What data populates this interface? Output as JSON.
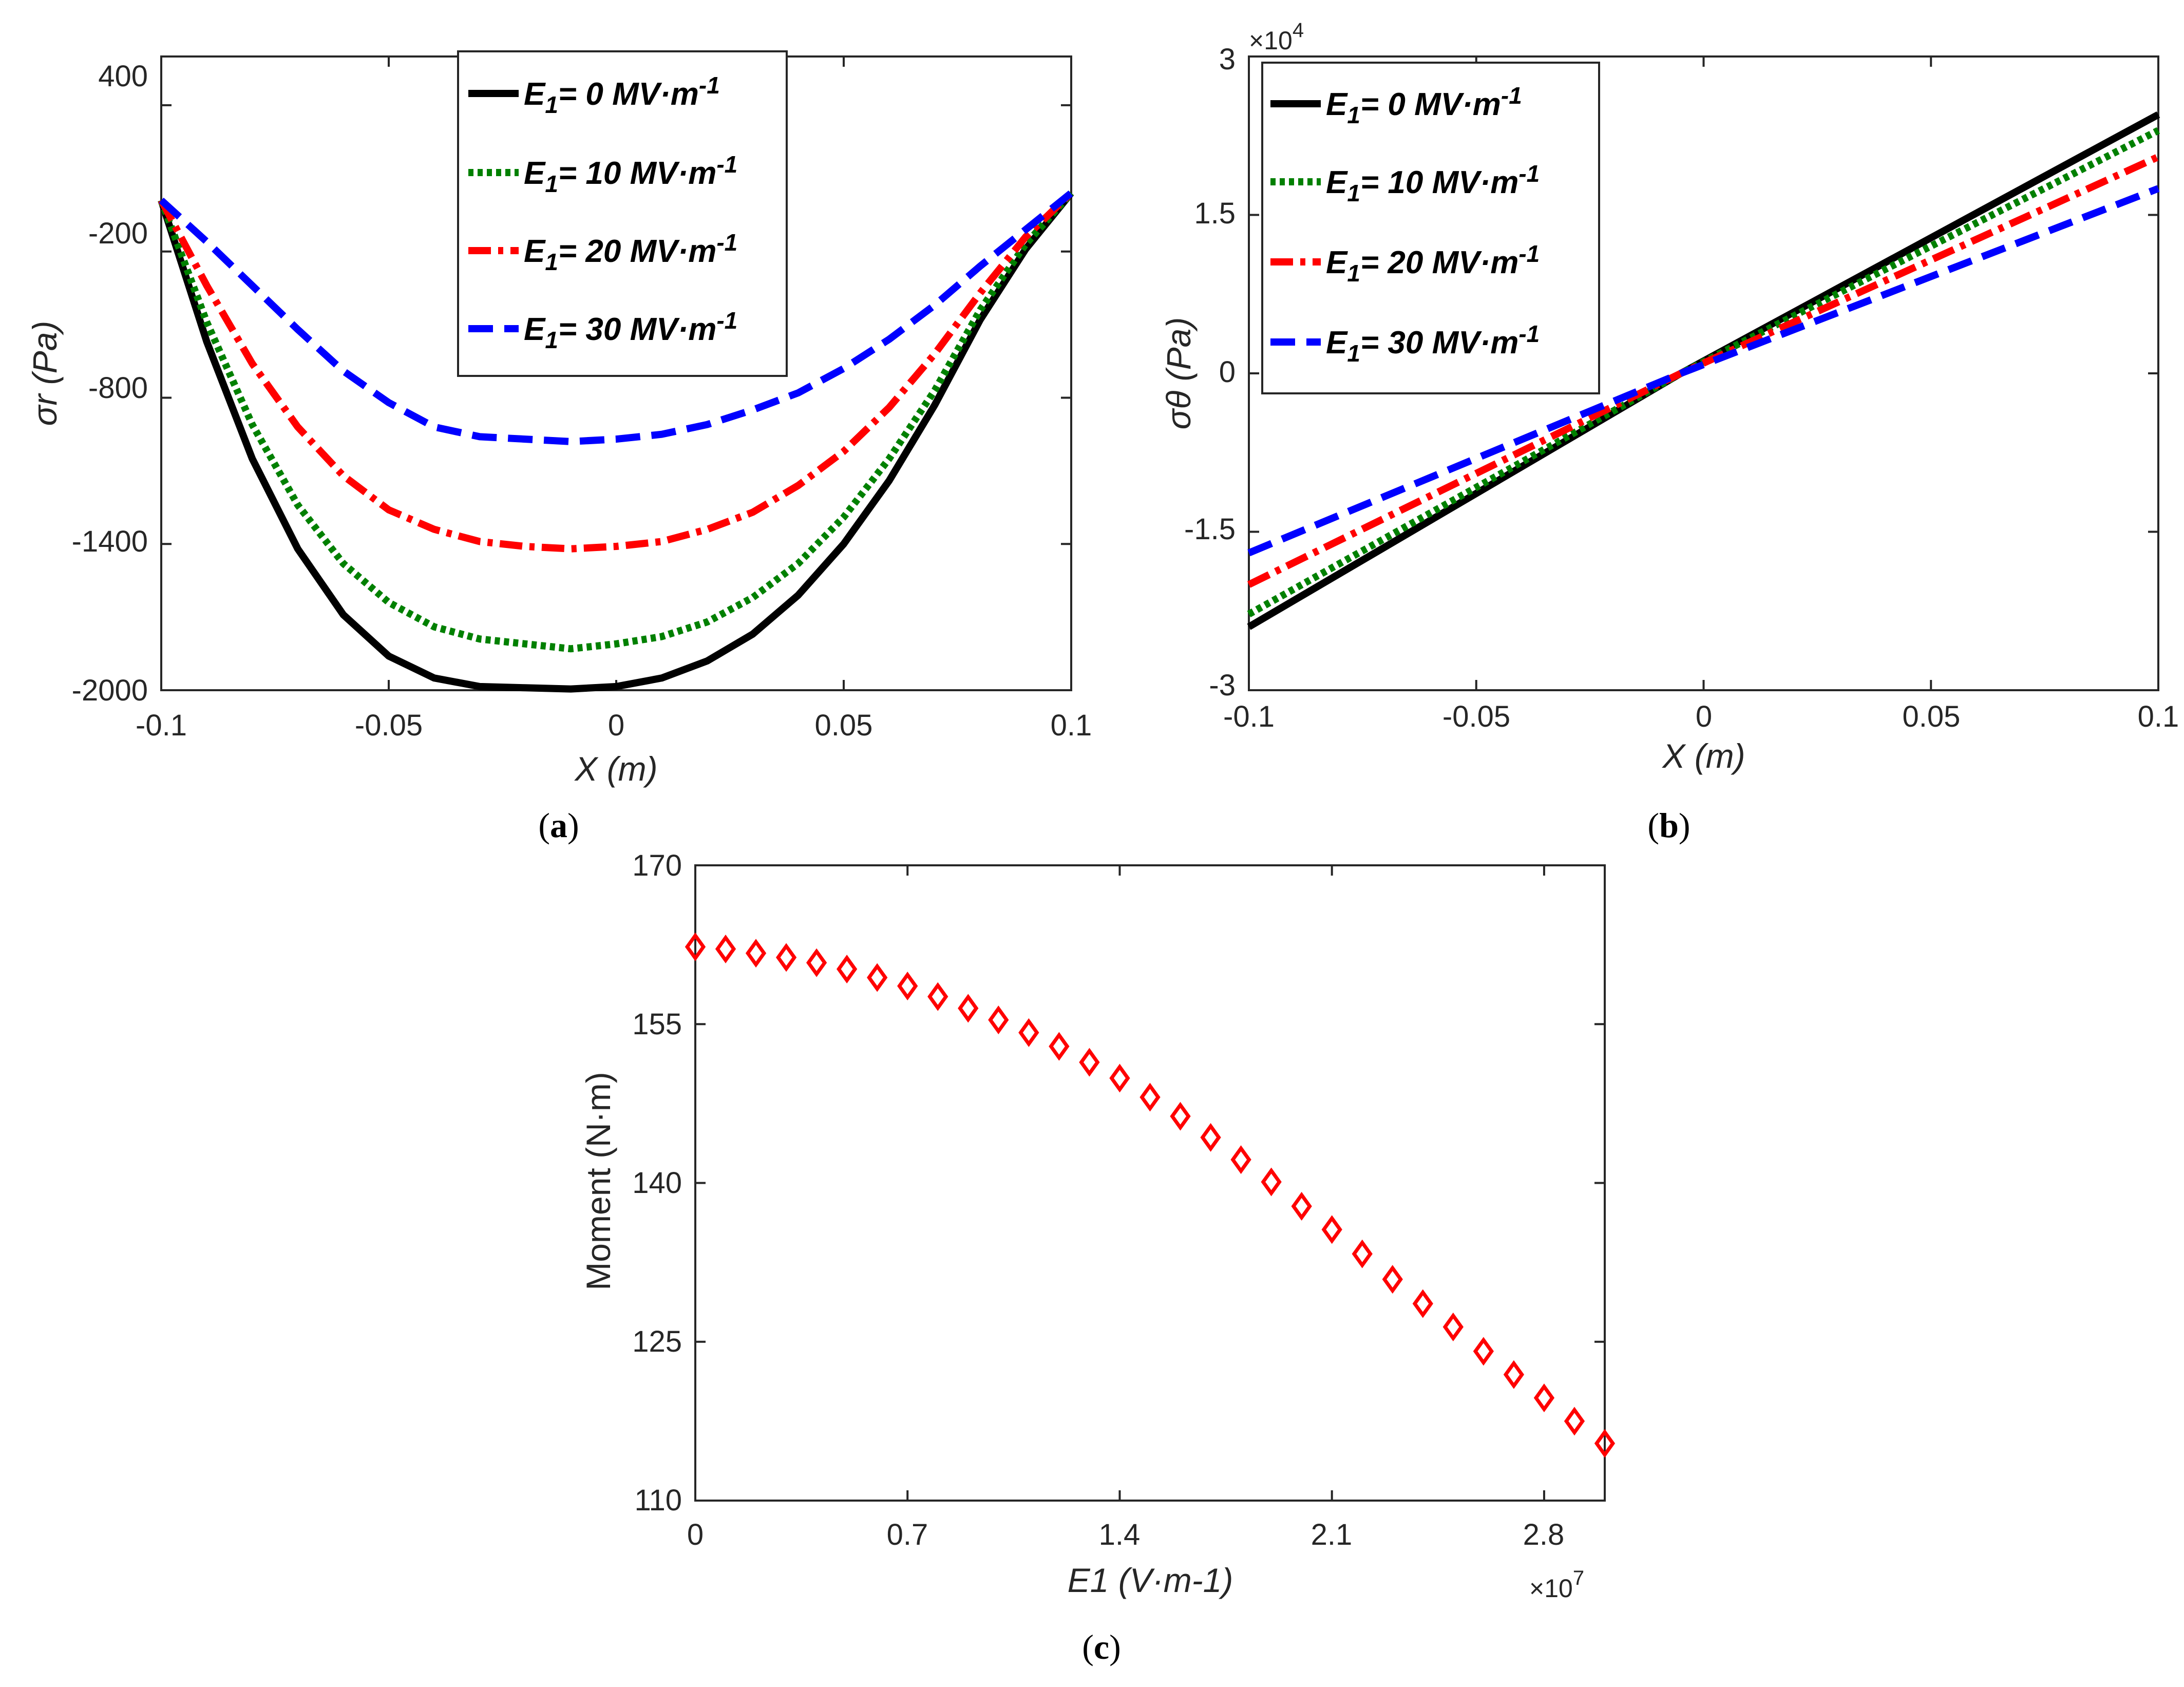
{
  "chart_data": [
    {
      "id": "a",
      "type": "line",
      "caption": "a",
      "xlabel": "X (m)",
      "ylabel": "σr (Pa)",
      "xlim": [
        -0.1,
        0.1
      ],
      "ylim": [
        -2000,
        600
      ],
      "xticks": [
        "-0.1",
        "-0.05",
        "0",
        "0.05",
        "0.1"
      ],
      "yticks": [
        "400",
        "-200",
        "-800",
        "-1400",
        "-2000"
      ],
      "legend_position": "top-right",
      "x": [
        -0.1,
        -0.09,
        -0.08,
        -0.07,
        -0.06,
        -0.05,
        -0.04,
        -0.03,
        -0.02,
        -0.01,
        0.0,
        0.01,
        0.02,
        0.03,
        0.04,
        0.05,
        0.06,
        0.07,
        0.08,
        0.09,
        0.1
      ],
      "series": [
        {
          "name": "E1= 0 MV·m-1",
          "color": "#000000",
          "style": "solid",
          "values": [
            10,
            -570,
            -1050,
            -1420,
            -1690,
            -1860,
            -1950,
            -1985,
            -1990,
            -1995,
            -1985,
            -1950,
            -1880,
            -1770,
            -1610,
            -1400,
            -1140,
            -830,
            -480,
            -190,
            40
          ]
        },
        {
          "name": "E1= 10 MV·m-1",
          "color": "#008000",
          "style": "dotted",
          "values": [
            10,
            -490,
            -910,
            -1240,
            -1480,
            -1640,
            -1740,
            -1790,
            -1810,
            -1830,
            -1810,
            -1780,
            -1720,
            -1620,
            -1480,
            -1290,
            -1050,
            -770,
            -440,
            -170,
            40
          ]
        },
        {
          "name": "E1= 20 MV·m-1",
          "color": "#ff0000",
          "style": "dashdot",
          "values": [
            10,
            -340,
            -660,
            -920,
            -1120,
            -1260,
            -1340,
            -1390,
            -1410,
            -1420,
            -1410,
            -1390,
            -1340,
            -1270,
            -1160,
            -1020,
            -840,
            -620,
            -370,
            -140,
            40
          ]
        },
        {
          "name": "E1= 30 MV·m-1",
          "color": "#0000ff",
          "style": "dashed",
          "values": [
            10,
            -160,
            -340,
            -520,
            -690,
            -820,
            -920,
            -960,
            -970,
            -980,
            -970,
            -950,
            -910,
            -850,
            -780,
            -680,
            -560,
            -420,
            -260,
            -110,
            40
          ]
        }
      ]
    },
    {
      "id": "b",
      "type": "line",
      "caption": "b",
      "xlabel": "X (m)",
      "ylabel": "σθ (Pa)",
      "xlim": [
        -0.1,
        0.1
      ],
      "ylim": [
        -3,
        3
      ],
      "exponent_label": "×10",
      "exponent_power": "4",
      "xticks": [
        "-0.1",
        "-0.05",
        "0",
        "0.05",
        "0.1"
      ],
      "yticks": [
        "3",
        "1.5",
        "0",
        "-1.5",
        "-3"
      ],
      "legend_position": "top-left",
      "x": [
        -0.1,
        -0.005,
        0.1
      ],
      "series": [
        {
          "name": "E1= 0 MV·m-1",
          "color": "#000000",
          "style": "solid",
          "values": [
            -2.4,
            0.0,
            2.45
          ]
        },
        {
          "name": "E1= 10 MV·m-1",
          "color": "#008000",
          "style": "dotted",
          "values": [
            -2.28,
            0.0,
            2.3
          ]
        },
        {
          "name": "E1= 20 MV·m-1",
          "color": "#ff0000",
          "style": "dashdot",
          "values": [
            -2.0,
            0.0,
            2.05
          ]
        },
        {
          "name": "E1= 30 MV·m-1",
          "color": "#0000ff",
          "style": "dashed",
          "values": [
            -1.7,
            0.0,
            1.75
          ]
        }
      ]
    },
    {
      "id": "c",
      "type": "scatter",
      "caption": "c",
      "xlabel": "E1 (V·m-1)",
      "ylabel": "Moment (N·m)",
      "xlim": [
        0,
        3.0
      ],
      "ylim": [
        110,
        170
      ],
      "exponent_label": "×10",
      "exponent_power": "7",
      "xticks": [
        "0",
        "0.7",
        "1.4",
        "2.1",
        "2.8"
      ],
      "yticks": [
        "170",
        "155",
        "140",
        "125",
        "110"
      ],
      "marker": "diamond",
      "color": "#ff0000",
      "x": [
        0,
        0.1,
        0.2,
        0.3,
        0.4,
        0.5,
        0.6,
        0.7,
        0.8,
        0.9,
        1.0,
        1.1,
        1.2,
        1.3,
        1.4,
        1.5,
        1.6,
        1.7,
        1.8,
        1.9,
        2.0,
        2.1,
        2.2,
        2.3,
        2.4,
        2.5,
        2.6,
        2.7,
        2.8,
        2.9,
        3.0
      ],
      "values": [
        162.3,
        162.1,
        161.7,
        161.3,
        160.8,
        160.2,
        159.4,
        158.6,
        157.6,
        156.5,
        155.4,
        154.2,
        152.9,
        151.4,
        149.9,
        148.1,
        146.3,
        144.3,
        142.2,
        140.1,
        137.8,
        135.6,
        133.3,
        130.9,
        128.6,
        126.4,
        124.1,
        121.9,
        119.7,
        117.5,
        115.4
      ]
    }
  ]
}
